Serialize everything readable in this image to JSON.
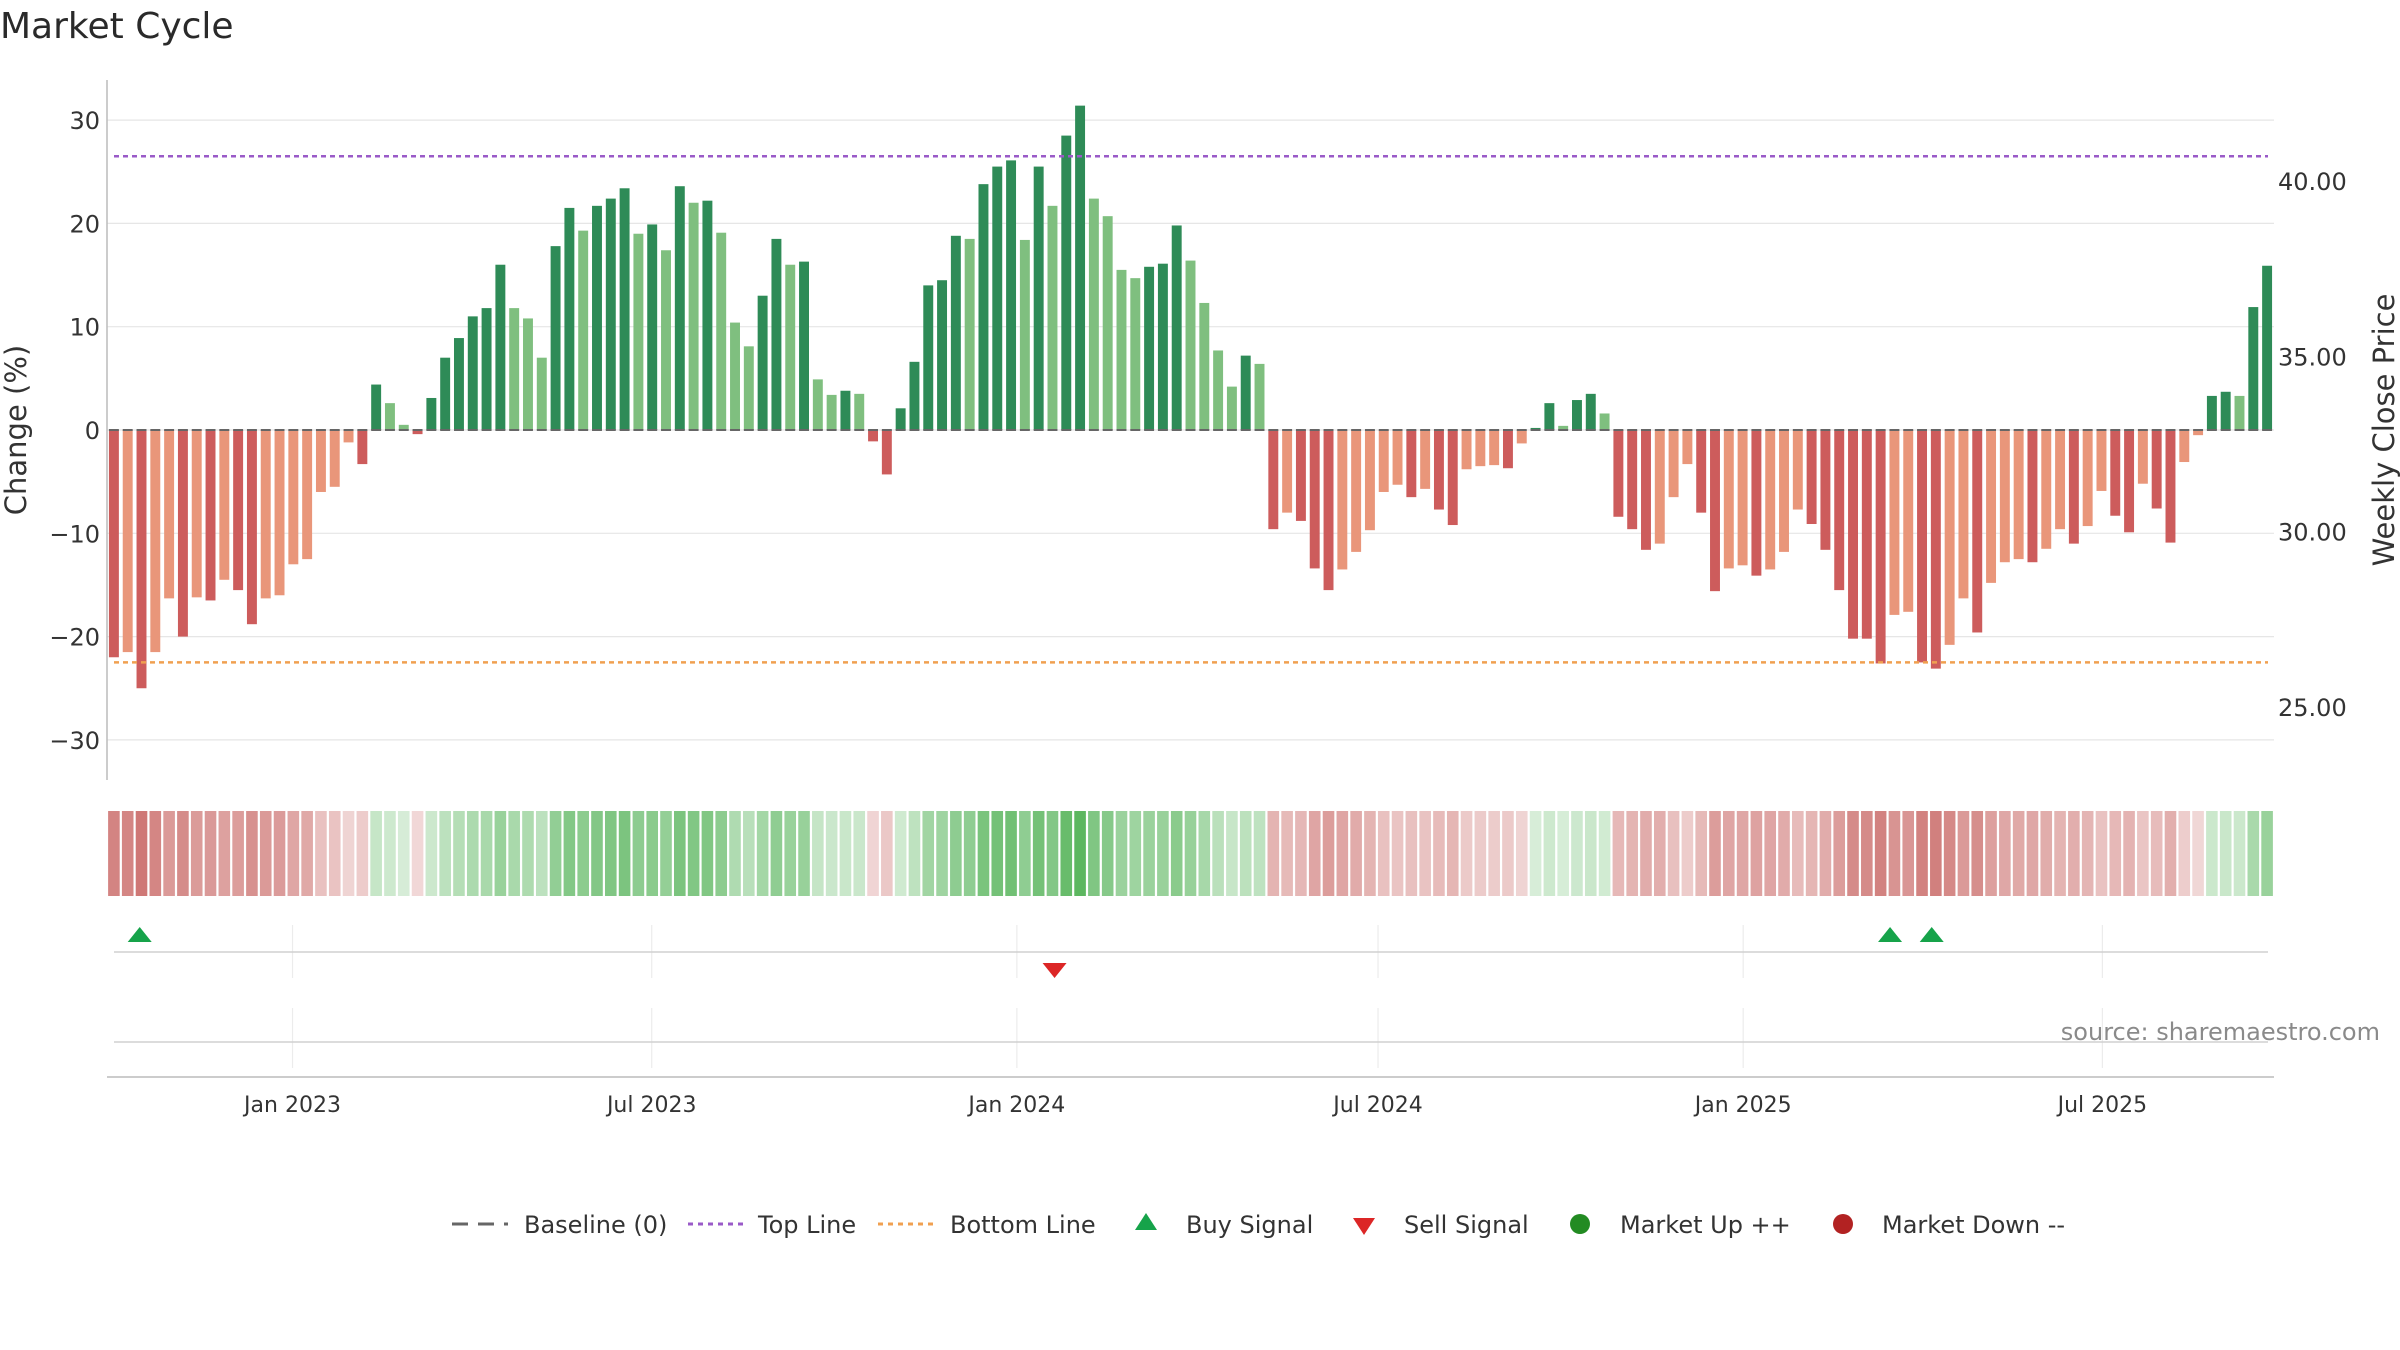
{
  "chart_data": {
    "type": "bar",
    "title": "Market Cycle",
    "ylabel": "Change (%)",
    "y2label": "Weekly Close Price",
    "ylim": [
      -34,
      34
    ],
    "yticks": [
      30,
      20,
      10,
      0,
      -10,
      -20,
      -30
    ],
    "ytick_labels": [
      "30",
      "20",
      "10",
      "0",
      "−10",
      "−20",
      "−30"
    ],
    "y2ticks": [
      40,
      35,
      30,
      25
    ],
    "y2tick_labels": [
      "40.00",
      "35.00",
      "30.00",
      "25.00"
    ],
    "x_start": "2022-10-03",
    "x_end": "2025-09-22",
    "xticks": [
      "2023-01-01",
      "2023-07-01",
      "2024-01-01",
      "2024-07-01",
      "2025-01-01",
      "2025-07-01"
    ],
    "xtick_labels": [
      "Jan 2023",
      "Jul 2023",
      "Jan 2024",
      "Jul 2024",
      "Jan 2025",
      "Jul 2025"
    ],
    "top_line": 26.5,
    "bottom_line": -22.5,
    "colors": {
      "up_strong": "#2e8b57",
      "up_weak": "#7fbf7f",
      "down_strong": "#cd5c5c",
      "down_weak": "#e9967a",
      "top_line": "#9a5ac8",
      "bottom_line": "#f0a050",
      "buy": "#16a34a",
      "sell": "#dc2626",
      "market_up": "#228b22",
      "market_down": "#b22222",
      "baseline": "#666666",
      "strip_up": "#4caf50",
      "strip_down": "#c0504d"
    },
    "series": [
      {
        "values": [
          -22,
          -21.5,
          -25,
          -21.5,
          -16.3,
          -20,
          -16.2,
          -16.5,
          -14.5,
          -15.5,
          -18.8,
          -16.3,
          -16,
          -13,
          -12.5,
          -6,
          -5.5,
          -1.2,
          -3.3,
          4.4,
          2.6,
          0.5,
          -0.4,
          3.1,
          7,
          8.9,
          11,
          11.8,
          16,
          11.8,
          10.8,
          7,
          17.8,
          21.5,
          19.3,
          21.7,
          22.4,
          23.4,
          19,
          19.9,
          17.4,
          23.6,
          22,
          22.2,
          19.1,
          10.4,
          8.1,
          13,
          18.5,
          16,
          16.3,
          4.9,
          3.4,
          3.8,
          3.5,
          -1.1,
          -4.3,
          2.1,
          6.6,
          14,
          14.5,
          18.8,
          18.5,
          23.8,
          25.5,
          26.1,
          18.4,
          25.5,
          21.7,
          28.5,
          31.4,
          22.4,
          20.7,
          15.5,
          14.7,
          15.8,
          16.1,
          19.8,
          16.4,
          12.3,
          7.7,
          4.2,
          7.2,
          6.4,
          -9.6,
          -8,
          -8.8,
          -13.4,
          -15.5,
          -13.5,
          -11.8,
          -9.7,
          -6,
          -5.3,
          -6.5,
          -5.7,
          -7.7,
          -9.2,
          -3.8,
          -3.5,
          -3.4,
          -3.7,
          -1.3,
          0.2,
          2.6,
          0.4,
          2.9,
          3.5,
          1.6,
          -8.4,
          -9.6,
          -11.6,
          -11,
          -6.5,
          -3.3,
          -8,
          -15.6,
          -13.4,
          -13.1,
          -14.1,
          -13.5,
          -11.8,
          -7.7,
          -9.1,
          -11.6,
          -15.5,
          -20.2,
          -20.2,
          -22.6,
          -17.9,
          -17.6,
          -22.5,
          -23.1,
          -20.8,
          -16.3,
          -19.6,
          -14.8,
          -12.8,
          -12.5,
          -12.8,
          -11.5,
          -9.6,
          -11,
          -9.3,
          -5.9,
          -8.3,
          -9.9,
          -5.2,
          -7.6,
          -10.9,
          -3.1,
          -0.5,
          3.3,
          3.7,
          3.3,
          11.9,
          15.9
        ]
      }
    ],
    "buy_signal_dates": [
      "2022-10-16",
      "2025-03-16",
      "2025-04-06"
    ],
    "sell_signal_dates": [
      "2024-01-20"
    ],
    "legend_placement": "bottom-center",
    "legend": [
      "Baseline (0)",
      "Top Line",
      "Bottom Line",
      "Buy Signal",
      "Sell Signal",
      "Market Up ++",
      "Market Down --"
    ],
    "source_note": "source: sharemaestro.com",
    "grid": true
  }
}
